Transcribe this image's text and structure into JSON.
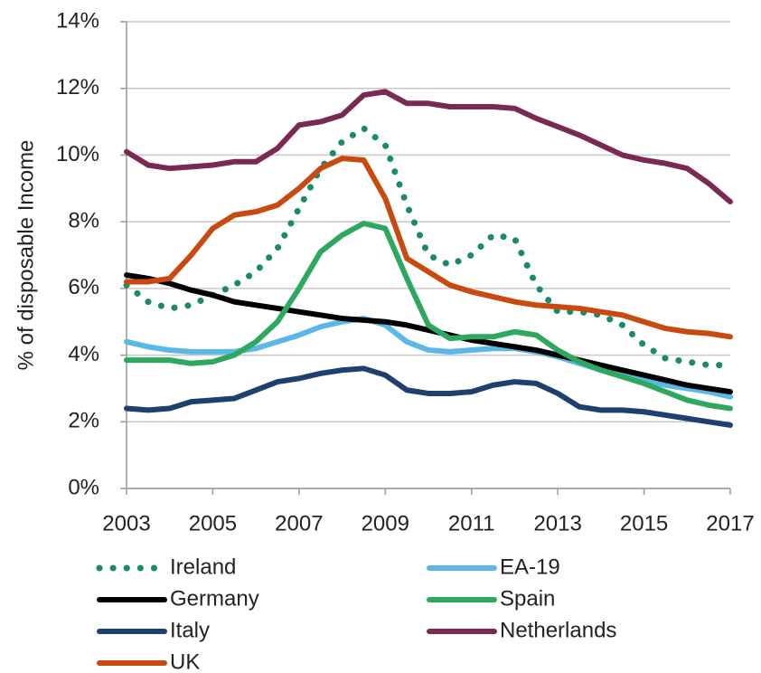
{
  "chart_data": {
    "type": "line",
    "y_axis_label": "% of disposable Income",
    "x": [
      2003,
      2003.5,
      2004,
      2004.5,
      2005,
      2005.5,
      2006,
      2006.5,
      2007,
      2007.5,
      2008,
      2008.5,
      2009,
      2009.5,
      2010,
      2010.5,
      2011,
      2011.5,
      2012,
      2012.5,
      2013,
      2013.5,
      2014,
      2014.5,
      2015,
      2015.5,
      2016,
      2016.5,
      2017
    ],
    "xlim": [
      2003,
      2017
    ],
    "xticks": [
      2003,
      2005,
      2007,
      2009,
      2011,
      2013,
      2015,
      2017
    ],
    "ylim": [
      0,
      14
    ],
    "yticks": [
      {
        "value": 0,
        "label": "0%"
      },
      {
        "value": 2,
        "label": "2%"
      },
      {
        "value": 4,
        "label": "4%"
      },
      {
        "value": 6,
        "label": "6%"
      },
      {
        "value": 8,
        "label": "8%"
      },
      {
        "value": 10,
        "label": "10%"
      },
      {
        "value": 12,
        "label": "12%"
      },
      {
        "value": 14,
        "label": "14%"
      }
    ],
    "grid": true,
    "series": [
      {
        "name": "Ireland",
        "color": "#1a8a68",
        "dash": "dotted",
        "values": [
          6.1,
          5.6,
          5.4,
          5.5,
          5.8,
          6.1,
          6.5,
          7.2,
          8.4,
          9.6,
          10.4,
          10.8,
          10.3,
          8.5,
          7.0,
          6.7,
          7.0,
          7.6,
          7.5,
          6.1,
          5.3,
          5.3,
          5.2,
          4.9,
          4.3,
          3.9,
          3.8,
          3.7,
          3.7
        ]
      },
      {
        "name": "EA-19",
        "color": "#5bb7e6",
        "values": [
          4.4,
          4.25,
          4.15,
          4.1,
          4.1,
          4.1,
          4.2,
          4.4,
          4.6,
          4.85,
          5.0,
          5.1,
          4.9,
          4.4,
          4.15,
          4.1,
          4.15,
          4.2,
          4.2,
          4.1,
          3.95,
          3.75,
          3.55,
          3.4,
          3.25,
          3.1,
          3.0,
          2.9,
          2.75
        ]
      },
      {
        "name": "Germany",
        "color": "#000000",
        "values": [
          6.4,
          6.3,
          6.15,
          5.95,
          5.8,
          5.6,
          5.5,
          5.4,
          5.3,
          5.2,
          5.1,
          5.05,
          5.0,
          4.9,
          4.75,
          4.6,
          4.45,
          4.35,
          4.25,
          4.15,
          4.0,
          3.85,
          3.7,
          3.55,
          3.4,
          3.25,
          3.1,
          3.0,
          2.9
        ]
      },
      {
        "name": "Spain",
        "color": "#2ea85e",
        "values": [
          3.85,
          3.85,
          3.85,
          3.75,
          3.8,
          4.0,
          4.4,
          5.0,
          6.0,
          7.1,
          7.6,
          7.95,
          7.8,
          6.3,
          4.9,
          4.5,
          4.55,
          4.55,
          4.7,
          4.6,
          4.15,
          3.8,
          3.55,
          3.35,
          3.15,
          2.9,
          2.65,
          2.5,
          2.4
        ]
      },
      {
        "name": "Italy",
        "color": "#1f3f6e",
        "values": [
          2.4,
          2.35,
          2.4,
          2.6,
          2.65,
          2.7,
          2.95,
          3.2,
          3.3,
          3.45,
          3.55,
          3.6,
          3.4,
          2.95,
          2.85,
          2.85,
          2.9,
          3.1,
          3.2,
          3.15,
          2.85,
          2.45,
          2.35,
          2.35,
          2.3,
          2.2,
          2.1,
          2.0,
          1.9
        ]
      },
      {
        "name": "Netherlands",
        "color": "#7a2a52",
        "values": [
          10.1,
          9.7,
          9.6,
          9.65,
          9.7,
          9.8,
          9.8,
          10.2,
          10.9,
          11.0,
          11.2,
          11.8,
          11.9,
          11.55,
          11.55,
          11.45,
          11.45,
          11.45,
          11.4,
          11.1,
          10.85,
          10.6,
          10.3,
          10.0,
          9.85,
          9.75,
          9.6,
          9.15,
          8.6
        ]
      },
      {
        "name": "UK",
        "color": "#c84a10",
        "values": [
          6.2,
          6.2,
          6.3,
          7.0,
          7.8,
          8.2,
          8.3,
          8.5,
          9.0,
          9.6,
          9.9,
          9.85,
          8.7,
          6.9,
          6.5,
          6.1,
          5.9,
          5.75,
          5.6,
          5.5,
          5.45,
          5.4,
          5.3,
          5.2,
          5.0,
          4.8,
          4.7,
          4.65,
          4.55
        ]
      }
    ]
  }
}
